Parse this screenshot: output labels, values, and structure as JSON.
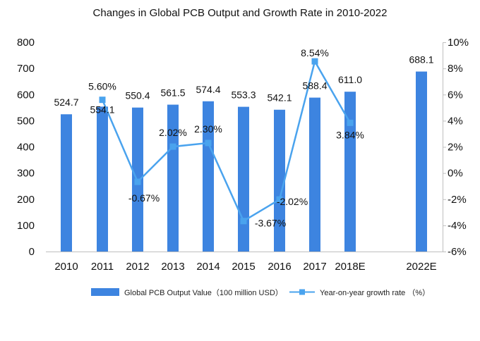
{
  "chart_data": {
    "type": "bar+line",
    "title": "Changes in Global PCB Output and Growth Rate in 2010-2022",
    "categories": [
      "2010",
      "2011",
      "2012",
      "2013",
      "2014",
      "2015",
      "2016",
      "2017",
      "2018E",
      "2022E"
    ],
    "series": [
      {
        "name": "Global PCB Output Value（100 million USD）",
        "type": "bar",
        "axis": "left",
        "color": "#3d84e0",
        "values": [
          524.7,
          554.1,
          550.4,
          561.5,
          574.4,
          553.3,
          542.1,
          588.4,
          611.0,
          688.1
        ],
        "labels": [
          "524.7",
          "554.1",
          "550.4",
          "561.5",
          "574.4",
          "553.3",
          "542.1",
          "588.4",
          "611.0",
          "688.1"
        ]
      },
      {
        "name": "Year-on-year growth rate （%）",
        "type": "line",
        "axis": "right",
        "color": "#4aa3ee",
        "values": [
          null,
          5.6,
          -0.67,
          2.02,
          2.3,
          -3.67,
          -2.02,
          8.54,
          3.84,
          null
        ],
        "labels": [
          "",
          "5.60%",
          "-0.67%",
          "2.02%",
          "2.30%",
          "-3.67%",
          "-2.02%",
          "8.54%",
          "3.84%",
          ""
        ]
      }
    ],
    "yleft": {
      "lim": [
        0,
        800
      ],
      "ticks": [
        "0",
        "100",
        "200",
        "300",
        "400",
        "500",
        "600",
        "700",
        "800"
      ]
    },
    "yright": {
      "lim": [
        -6,
        10
      ],
      "ticks": [
        "-6%",
        "-4%",
        "-2%",
        "0%",
        "2%",
        "4%",
        "6%",
        "8%",
        "10%"
      ]
    },
    "grid": false,
    "legend_position": "bottom"
  }
}
